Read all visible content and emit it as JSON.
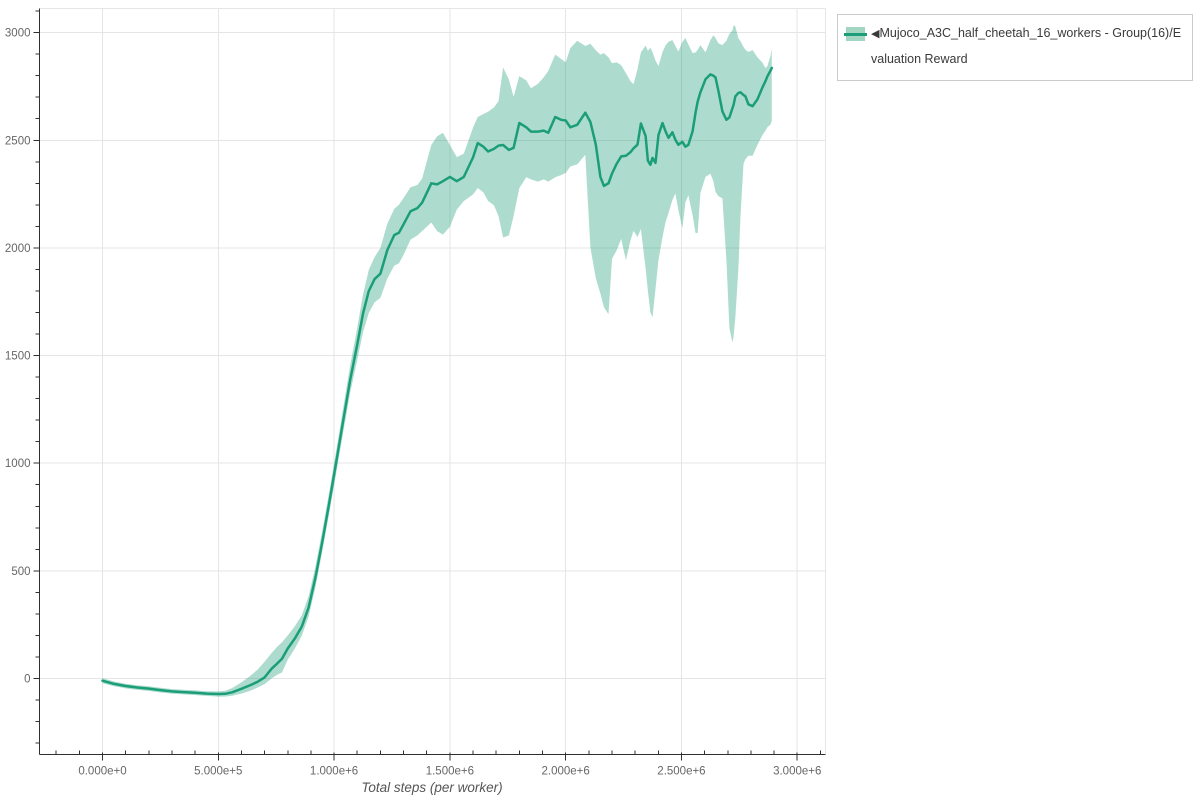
{
  "chart_data": {
    "type": "line",
    "title": "",
    "xlabel": "Total steps (per worker)",
    "ylabel": "",
    "grid": true,
    "legend_position": "outside-top-right",
    "xlim": [
      -272000,
      3122000
    ],
    "ylim": [
      -353,
      3112
    ],
    "x_axis": {
      "minor_step": 100000,
      "ticks": [
        {
          "v": 0,
          "label": "0.000e+0"
        },
        {
          "v": 500000,
          "label": "5.000e+5"
        },
        {
          "v": 1000000,
          "label": "1.000e+6"
        },
        {
          "v": 1500000,
          "label": "1.500e+6"
        },
        {
          "v": 2000000,
          "label": "2.000e+6"
        },
        {
          "v": 2500000,
          "label": "2.500e+6"
        },
        {
          "v": 3000000,
          "label": "3.000e+6"
        }
      ]
    },
    "y_axis": {
      "minor_step": 100,
      "ticks": [
        {
          "v": 0,
          "label": "0"
        },
        {
          "v": 500,
          "label": "500"
        },
        {
          "v": 1000,
          "label": "1000"
        },
        {
          "v": 1500,
          "label": "1500"
        },
        {
          "v": 2000,
          "label": "2000"
        },
        {
          "v": 2500,
          "label": "2500"
        },
        {
          "v": 3000,
          "label": "3000"
        }
      ]
    },
    "series": [
      {
        "name": "Mujoco_A3C_half_cheetah_16_workers - Group(16)/Evaluation Reward",
        "line_color": "#1b9e77",
        "band_color": "#1b9e77",
        "band_opacity": 0.36,
        "points_format": [
          "steps",
          "mean",
          "band_low",
          "band_high"
        ],
        "points": [
          [
            0,
            -10,
            -22,
            2
          ],
          [
            50000,
            -25,
            -36,
            -14
          ],
          [
            100000,
            -35,
            -46,
            -24
          ],
          [
            150000,
            -42,
            -53,
            -31
          ],
          [
            200000,
            -47,
            -58,
            -36
          ],
          [
            250000,
            -54,
            -65,
            -43
          ],
          [
            300000,
            -60,
            -71,
            -49
          ],
          [
            350000,
            -63,
            -74,
            -52
          ],
          [
            400000,
            -66,
            -77,
            -55
          ],
          [
            450000,
            -70,
            -81,
            -59
          ],
          [
            500000,
            -72,
            -84,
            -60
          ],
          [
            530000,
            -71,
            -84,
            -57
          ],
          [
            560000,
            -64,
            -80,
            -44
          ],
          [
            600000,
            -48,
            -70,
            -18
          ],
          [
            640000,
            -30,
            -56,
            14
          ],
          [
            670000,
            -15,
            -42,
            42
          ],
          [
            700000,
            5,
            -26,
            78
          ],
          [
            730000,
            45,
            0,
            118
          ],
          [
            755000,
            70,
            18,
            148
          ],
          [
            775000,
            92,
            28,
            168
          ],
          [
            800000,
            140,
            88,
            200
          ],
          [
            830000,
            185,
            138,
            242
          ],
          [
            860000,
            240,
            198,
            292
          ],
          [
            890000,
            330,
            288,
            382
          ],
          [
            920000,
            470,
            425,
            522
          ],
          [
            950000,
            640,
            595,
            692
          ],
          [
            980000,
            820,
            772,
            872
          ],
          [
            1010000,
            1010,
            958,
            1064
          ],
          [
            1040000,
            1200,
            1146,
            1260
          ],
          [
            1070000,
            1390,
            1330,
            1458
          ],
          [
            1100000,
            1550,
            1478,
            1628
          ],
          [
            1125000,
            1695,
            1608,
            1782
          ],
          [
            1150000,
            1800,
            1698,
            1898
          ],
          [
            1175000,
            1855,
            1748,
            1958
          ],
          [
            1200000,
            1880,
            1768,
            2000
          ],
          [
            1230000,
            1990,
            1858,
            2112
          ],
          [
            1260000,
            2060,
            1918,
            2182
          ],
          [
            1280000,
            2070,
            1928,
            2200
          ],
          [
            1300000,
            2110,
            1968,
            2232
          ],
          [
            1330000,
            2170,
            2038,
            2282
          ],
          [
            1360000,
            2185,
            2058,
            2292
          ],
          [
            1380000,
            2210,
            2078,
            2322
          ],
          [
            1420000,
            2300,
            2118,
            2478
          ],
          [
            1445000,
            2295,
            2078,
            2518
          ],
          [
            1470000,
            2310,
            2062,
            2535
          ],
          [
            1500000,
            2330,
            2098,
            2478
          ],
          [
            1530000,
            2310,
            2178,
            2422
          ],
          [
            1560000,
            2330,
            2218,
            2438
          ],
          [
            1600000,
            2420,
            2248,
            2558
          ],
          [
            1620000,
            2487,
            2278,
            2608
          ],
          [
            1645000,
            2470,
            2258,
            2622
          ],
          [
            1665000,
            2448,
            2218,
            2632
          ],
          [
            1690000,
            2460,
            2198,
            2652
          ],
          [
            1710000,
            2475,
            2148,
            2682
          ],
          [
            1730000,
            2478,
            2048,
            2838
          ],
          [
            1755000,
            2455,
            2058,
            2782
          ],
          [
            1775000,
            2465,
            2148,
            2702
          ],
          [
            1800000,
            2580,
            2278,
            2798
          ],
          [
            1830000,
            2560,
            2328,
            2778
          ],
          [
            1850000,
            2540,
            2318,
            2742
          ],
          [
            1880000,
            2540,
            2308,
            2762
          ],
          [
            1905000,
            2545,
            2318,
            2792
          ],
          [
            1925000,
            2535,
            2308,
            2822
          ],
          [
            1955000,
            2608,
            2328,
            2898
          ],
          [
            1980000,
            2595,
            2338,
            2878
          ],
          [
            2000000,
            2592,
            2348,
            2862
          ],
          [
            2020000,
            2560,
            2378,
            2928
          ],
          [
            2050000,
            2572,
            2388,
            2962
          ],
          [
            2085000,
            2628,
            2432,
            2938
          ],
          [
            2107000,
            2585,
            2002,
            2948
          ],
          [
            2130000,
            2480,
            1860,
            2918
          ],
          [
            2150000,
            2330,
            1788,
            2898
          ],
          [
            2165000,
            2288,
            1725,
            2905
          ],
          [
            2185000,
            2300,
            1692,
            2885
          ],
          [
            2200000,
            2345,
            1950,
            2858
          ],
          [
            2220000,
            2390,
            1988,
            2862
          ],
          [
            2240000,
            2425,
            2042,
            2848
          ],
          [
            2260000,
            2428,
            1942,
            2812
          ],
          [
            2280000,
            2445,
            2035,
            2775
          ],
          [
            2293000,
            2462,
            2080,
            2760
          ],
          [
            2310000,
            2480,
            2050,
            2830
          ],
          [
            2325000,
            2578,
            2088,
            2908
          ],
          [
            2345000,
            2520,
            1905,
            2940
          ],
          [
            2355000,
            2405,
            1800,
            2915
          ],
          [
            2366000,
            2386,
            1700,
            2930
          ],
          [
            2375000,
            2418,
            1678,
            2910
          ],
          [
            2388000,
            2395,
            1810,
            2870
          ],
          [
            2401000,
            2525,
            1945,
            2845
          ],
          [
            2418000,
            2580,
            2050,
            2910
          ],
          [
            2431000,
            2542,
            2120,
            2940
          ],
          [
            2444000,
            2511,
            2162,
            2958
          ],
          [
            2461000,
            2537,
            2222,
            2965
          ],
          [
            2474000,
            2502,
            2253,
            2938
          ],
          [
            2487000,
            2479,
            2175,
            2912
          ],
          [
            2504000,
            2493,
            2092,
            2958
          ],
          [
            2517000,
            2470,
            2212,
            2975
          ],
          [
            2530000,
            2479,
            2245,
            2945
          ],
          [
            2548000,
            2542,
            2152,
            2905
          ],
          [
            2561000,
            2630,
            2068,
            2908
          ],
          [
            2570000,
            2680,
            2070,
            2920
          ],
          [
            2582000,
            2723,
            2255,
            2942
          ],
          [
            2604000,
            2783,
            2330,
            2908
          ],
          [
            2625000,
            2806,
            2345,
            2965
          ],
          [
            2638000,
            2800,
            2310,
            2988
          ],
          [
            2647000,
            2792,
            2260,
            2975
          ],
          [
            2660000,
            2727,
            2240,
            2950
          ],
          [
            2677000,
            2634,
            2230,
            2942
          ],
          [
            2694000,
            2595,
            1945,
            2962
          ],
          [
            2707000,
            2606,
            1628,
            2995
          ],
          [
            2720000,
            2648,
            1560,
            3010
          ],
          [
            2725000,
            2665,
            1590,
            3035
          ],
          [
            2733000,
            2704,
            1680,
            3028
          ],
          [
            2746000,
            2720,
            1905,
            2974
          ],
          [
            2755000,
            2723,
            2150,
            2960
          ],
          [
            2768000,
            2710,
            2390,
            2933
          ],
          [
            2776000,
            2704,
            2412,
            2920
          ],
          [
            2789000,
            2667,
            2428,
            2910
          ],
          [
            2807000,
            2658,
            2428,
            2919
          ],
          [
            2828000,
            2690,
            2478,
            2886
          ],
          [
            2850000,
            2746,
            2525,
            2860
          ],
          [
            2863000,
            2775,
            2545,
            2835
          ],
          [
            2871000,
            2797,
            2560,
            2845
          ],
          [
            2884000,
            2822,
            2572,
            2890
          ],
          [
            2890000,
            2836,
            2590,
            2925
          ]
        ]
      }
    ]
  },
  "legend": {
    "collapse_icon": "◀",
    "swatch_band_color": "#a3d6c2",
    "swatch_line_color": "#1b9e77"
  },
  "colors": {
    "line": "#1b9e77",
    "grid": "#e5e5e5",
    "axis": "#303030",
    "tick_label": "#666666",
    "axis_title": "#555555",
    "legend_border": "#cbcbcb",
    "legend_text": "#3a3a3a"
  }
}
